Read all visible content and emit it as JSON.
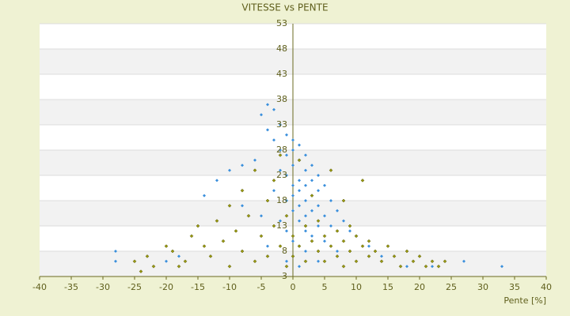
{
  "chart_data": {
    "type": "scatter",
    "title": "VITESSE vs PENTE",
    "x_label": "Pente [%]",
    "xlim": [
      -40,
      40
    ],
    "xticks": [
      -40,
      -35,
      -30,
      -25,
      -20,
      -15,
      -10,
      -5,
      0,
      5,
      10,
      15,
      20,
      25,
      30,
      35,
      40
    ],
    "ylim": [
      3,
      53
    ],
    "yticks": [
      3,
      8,
      13,
      18,
      23,
      28,
      33,
      38,
      43,
      48,
      53
    ],
    "grid": true,
    "series": [
      {
        "color": "#3a8fdc",
        "x": [
          -4,
          -3,
          -5,
          -2,
          -4,
          -1,
          0,
          -3,
          1,
          -2,
          0,
          2,
          -1,
          1,
          -6,
          -8,
          3,
          0,
          -2,
          2,
          -10,
          4,
          -1,
          1,
          3,
          -12,
          0,
          2,
          5,
          -3,
          1,
          4,
          -14,
          0,
          3,
          6,
          -1,
          2,
          -8,
          1,
          4,
          7,
          0,
          3,
          -5,
          2,
          5,
          8,
          1,
          -2,
          4,
          6,
          9,
          2,
          -1,
          3,
          10,
          0,
          5,
          -4,
          12,
          2,
          7,
          14,
          0,
          -28,
          -28,
          -20,
          -18,
          18,
          22,
          27,
          33,
          1,
          -1,
          4
        ],
        "values": [
          37,
          36,
          35,
          33,
          32,
          31,
          30,
          30,
          29,
          28,
          28,
          27,
          27,
          26,
          26,
          25,
          25,
          25,
          24,
          24,
          24,
          23,
          23,
          22,
          22,
          22,
          21,
          21,
          21,
          20,
          20,
          20,
          19,
          19,
          19,
          18,
          18,
          18,
          17,
          17,
          17,
          16,
          16,
          16,
          15,
          15,
          15,
          14,
          14,
          14,
          13,
          13,
          12,
          12,
          12,
          11,
          11,
          10,
          10,
          9,
          9,
          8,
          8,
          7,
          7,
          8,
          6,
          6,
          7,
          5,
          5,
          6,
          5,
          5,
          6,
          6
        ]
      },
      {
        "color": "#9a9a10",
        "x": [
          -25,
          -23,
          -22,
          -19,
          -17,
          -16,
          -15,
          -14,
          -13,
          -12,
          -11,
          -10,
          -10,
          -9,
          -8,
          -8,
          -7,
          -6,
          -6,
          -5,
          -4,
          -4,
          -3,
          -3,
          -2,
          -2,
          -1,
          -1,
          0,
          0,
          1,
          1,
          2,
          2,
          3,
          3,
          4,
          4,
          5,
          5,
          6,
          6,
          7,
          7,
          8,
          8,
          9,
          9,
          10,
          10,
          11,
          12,
          12,
          13,
          14,
          15,
          16,
          17,
          18,
          19,
          20,
          21,
          22,
          23,
          24,
          -20,
          -18,
          -24,
          11,
          8
        ],
        "values": [
          6,
          7,
          5,
          8,
          6,
          11,
          13,
          9,
          7,
          14,
          10,
          5,
          17,
          12,
          8,
          20,
          15,
          6,
          24,
          11,
          18,
          7,
          22,
          13,
          9,
          27,
          15,
          5,
          11,
          7,
          26,
          9,
          13,
          6,
          10,
          19,
          8,
          14,
          11,
          6,
          9,
          24,
          12,
          7,
          10,
          5,
          8,
          13,
          11,
          6,
          9,
          7,
          10,
          8,
          6,
          9,
          7,
          5,
          8,
          6,
          7,
          5,
          6,
          5,
          6,
          9,
          5,
          4,
          22,
          18
        ]
      }
    ]
  }
}
